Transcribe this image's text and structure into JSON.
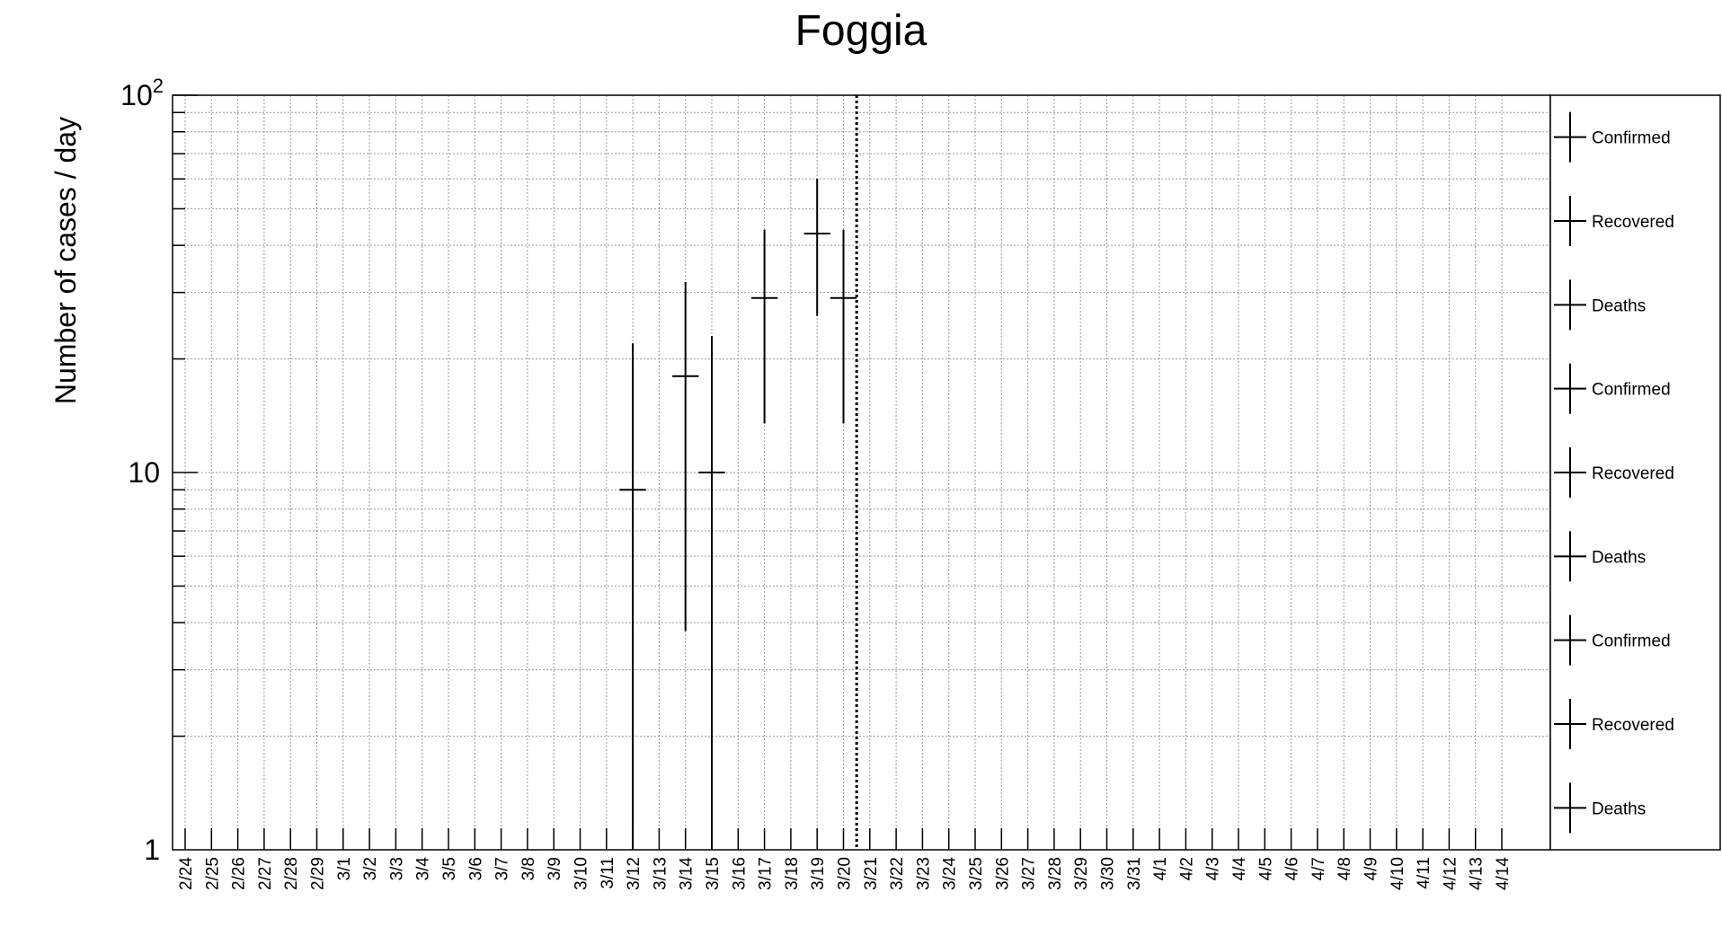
{
  "chart_data": {
    "type": "scatter",
    "title": "Foggia",
    "xlabel": "",
    "ylabel": "Number of cases / day",
    "yscale": "log",
    "ylim": [
      1,
      100
    ],
    "y_ticks": [
      {
        "value": 1,
        "label": "1"
      },
      {
        "value": 10,
        "label": "10"
      },
      {
        "value": 100,
        "label": "10",
        "sup": "2"
      }
    ],
    "categories": [
      "2/24",
      "2/25",
      "2/26",
      "2/27",
      "2/28",
      "2/29",
      "3/1",
      "3/2",
      "3/3",
      "3/4",
      "3/5",
      "3/6",
      "3/7",
      "3/8",
      "3/9",
      "3/10",
      "3/11",
      "3/12",
      "3/13",
      "3/14",
      "3/15",
      "3/16",
      "3/17",
      "3/18",
      "3/19",
      "3/20",
      "3/21",
      "3/22",
      "3/23",
      "3/24",
      "3/25",
      "3/26",
      "3/27",
      "3/28",
      "3/29",
      "3/30",
      "3/31",
      "4/1",
      "4/2",
      "4/3",
      "4/4",
      "4/5",
      "4/6",
      "4/7",
      "4/8",
      "4/9",
      "4/10",
      "4/11",
      "4/12",
      "4/13",
      "4/14"
    ],
    "grid": true,
    "vertical_marker": {
      "between": [
        "3/20",
        "3/21"
      ],
      "style": "dotted"
    },
    "series": [
      {
        "name": "Confirmed",
        "points": [
          {
            "x": "3/12",
            "y": 9,
            "ylow": 1,
            "yhigh": 22
          },
          {
            "x": "3/14",
            "y": 18,
            "ylow": 3.8,
            "yhigh": 32
          },
          {
            "x": "3/15",
            "y": 10,
            "ylow": 1,
            "yhigh": 23
          },
          {
            "x": "3/17",
            "y": 29,
            "ylow": 13.5,
            "yhigh": 44
          },
          {
            "x": "3/19",
            "y": 43,
            "ylow": 26,
            "yhigh": 60
          },
          {
            "x": "3/20",
            "y": 29,
            "ylow": 13.5,
            "yhigh": 44
          }
        ]
      }
    ],
    "legend": {
      "placement": "right",
      "entries": [
        "Confirmed",
        "Recovered",
        "Deaths",
        "Confirmed",
        "Recovered",
        "Deaths",
        "Confirmed",
        "Recovered",
        "Deaths"
      ]
    }
  }
}
